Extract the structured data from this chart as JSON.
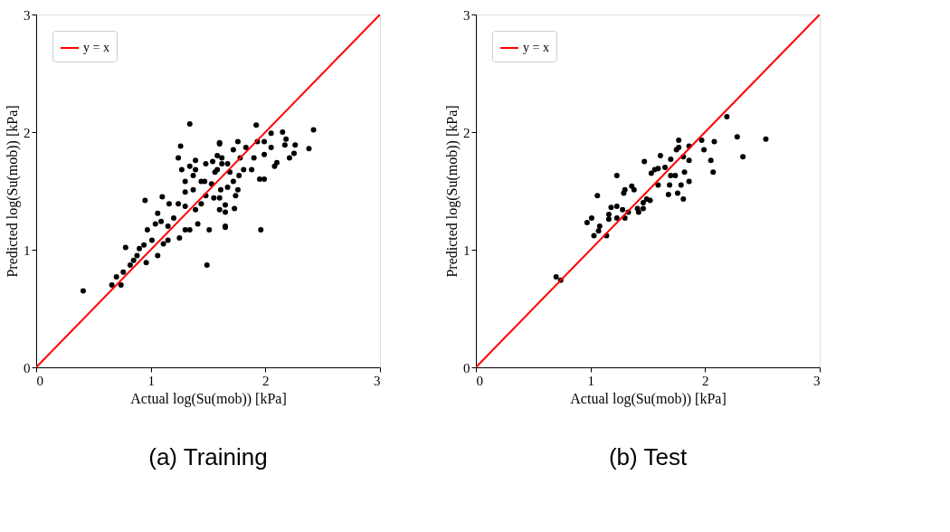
{
  "chart_data": [
    {
      "type": "scatter",
      "title": "(a) Training",
      "xlabel": "Actual log(Su(mob)) [kPa]",
      "ylabel": "Predicted log(Su(mob)) [kPa]",
      "xlim": [
        0,
        3
      ],
      "ylim": [
        0,
        3
      ],
      "xticks": [
        0,
        1,
        2,
        3
      ],
      "yticks": [
        0,
        1,
        2,
        3
      ],
      "grid": false,
      "legend": "top left",
      "series": [
        {
          "type": "scatter",
          "marker": "circle",
          "color": "#000000",
          "x": [
            1.34,
            1.26,
            1.6,
            1.24,
            0.95,
            1.1,
            0.78,
            0.41,
            0.66,
            0.7,
            0.74,
            0.76,
            0.82,
            0.88,
            0.96,
            0.94,
            1.01,
            1.06,
            1.11,
            1.06,
            1.15,
            1.25,
            1.2,
            1.3,
            1.34,
            1.41,
            1.49,
            1.51,
            1.3,
            1.39,
            1.44,
            1.24,
            1.16,
            1.3,
            1.37,
            1.48,
            1.55,
            1.65,
            1.6,
            1.3,
            1.37,
            1.44,
            1.27,
            1.39,
            1.48,
            1.54,
            1.62,
            1.56,
            1.47,
            1.53,
            1.61,
            1.58,
            1.39,
            1.34,
            1.15,
            1.09,
            0.97,
            1.04,
            0.9,
            0.85,
            1.92,
            2.42,
            2.15,
            2.05,
            2.18,
            2.38,
            2.26,
            2.25,
            2.21,
            2.17,
            2.05,
            1.99,
            1.93,
            1.99,
            2.1,
            2.08,
            1.95,
            1.99,
            1.96,
            1.88,
            1.9,
            1.83,
            1.76,
            1.72,
            1.6,
            1.78,
            1.81,
            1.77,
            1.72,
            1.76,
            1.74,
            1.73,
            1.65,
            1.65,
            1.65,
            1.67,
            1.58,
            1.62,
            1.69,
            1.67,
            1.6
          ],
          "values": [
            2.07,
            1.88,
            1.9,
            1.78,
            1.42,
            1.45,
            1.02,
            0.65,
            0.7,
            0.77,
            0.7,
            0.81,
            0.87,
            0.95,
            0.89,
            1.04,
            1.08,
            0.95,
            1.05,
            1.31,
            1.2,
            1.1,
            1.27,
            1.17,
            1.17,
            1.22,
            0.87,
            1.17,
            1.37,
            1.34,
            1.39,
            1.39,
            1.39,
            1.49,
            1.51,
            1.46,
            1.44,
            1.2,
            1.34,
            1.58,
            1.63,
            1.58,
            1.68,
            1.68,
            1.73,
            1.75,
            1.73,
            1.66,
            1.58,
            1.56,
            1.51,
            1.8,
            1.76,
            1.71,
            1.08,
            1.24,
            1.17,
            1.22,
            1.01,
            0.91,
            2.06,
            2.02,
            2.0,
            1.99,
            1.94,
            1.86,
            1.89,
            1.82,
            1.78,
            1.89,
            1.87,
            1.81,
            1.92,
            1.92,
            1.74,
            1.71,
            1.6,
            1.6,
            1.17,
            1.68,
            1.78,
            1.87,
            1.92,
            1.85,
            1.91,
            1.78,
            1.68,
            1.63,
            1.58,
            1.51,
            1.46,
            1.35,
            1.38,
            1.32,
            1.19,
            1.73,
            1.68,
            1.78,
            1.66,
            1.53,
            1.44
          ]
        },
        {
          "type": "line",
          "name": "y = x",
          "color": "#ff0000",
          "x": [
            0,
            3
          ],
          "values": [
            0,
            3
          ]
        }
      ]
    },
    {
      "type": "scatter",
      "title": "(b) Test",
      "xlabel": "Actual log(Su(mob)) [kPa]",
      "ylabel": "Predicted log(Su(mob)) [kPa]",
      "xlim": [
        0,
        3
      ],
      "ylim": [
        0,
        3
      ],
      "xticks": [
        0,
        1,
        2,
        3
      ],
      "yticks": [
        0,
        1,
        2,
        3
      ],
      "grid": false,
      "legend": "top left",
      "series": [
        {
          "type": "scatter",
          "marker": "circle",
          "color": "#000000",
          "x": [
            2.19,
            2.28,
            2.33,
            2.53,
            2.08,
            1.97,
            1.99,
            2.05,
            2.07,
            1.77,
            1.75,
            1.77,
            1.86,
            1.81,
            1.86,
            1.82,
            1.86,
            1.79,
            1.81,
            1.76,
            1.68,
            1.69,
            1.7,
            1.74,
            1.7,
            1.65,
            1.61,
            1.59,
            1.56,
            1.53,
            1.47,
            1.59,
            1.52,
            1.49,
            1.46,
            1.46,
            1.42,
            1.41,
            1.36,
            1.38,
            1.3,
            1.29,
            1.23,
            1.23,
            1.18,
            1.28,
            1.33,
            1.3,
            1.23,
            1.16,
            1.16,
            1.06,
            1.01,
            0.97,
            1.08,
            1.07,
            1.03,
            1.14,
            0.7,
            0.74
          ],
          "values": [
            2.13,
            1.96,
            1.79,
            1.94,
            1.92,
            1.93,
            1.85,
            1.76,
            1.66,
            1.93,
            1.85,
            1.87,
            1.88,
            1.79,
            1.76,
            1.66,
            1.58,
            1.55,
            1.43,
            1.48,
            1.47,
            1.55,
            1.63,
            1.63,
            1.77,
            1.7,
            1.8,
            1.69,
            1.68,
            1.65,
            1.75,
            1.55,
            1.42,
            1.43,
            1.4,
            1.35,
            1.32,
            1.35,
            1.54,
            1.51,
            1.51,
            1.48,
            1.63,
            1.37,
            1.36,
            1.34,
            1.32,
            1.27,
            1.27,
            1.3,
            1.26,
            1.46,
            1.27,
            1.23,
            1.2,
            1.16,
            1.12,
            1.12,
            0.77,
            0.74
          ]
        },
        {
          "type": "line",
          "name": "y = x",
          "color": "#ff0000",
          "x": [
            0,
            3
          ],
          "values": [
            0,
            3
          ]
        }
      ]
    }
  ]
}
